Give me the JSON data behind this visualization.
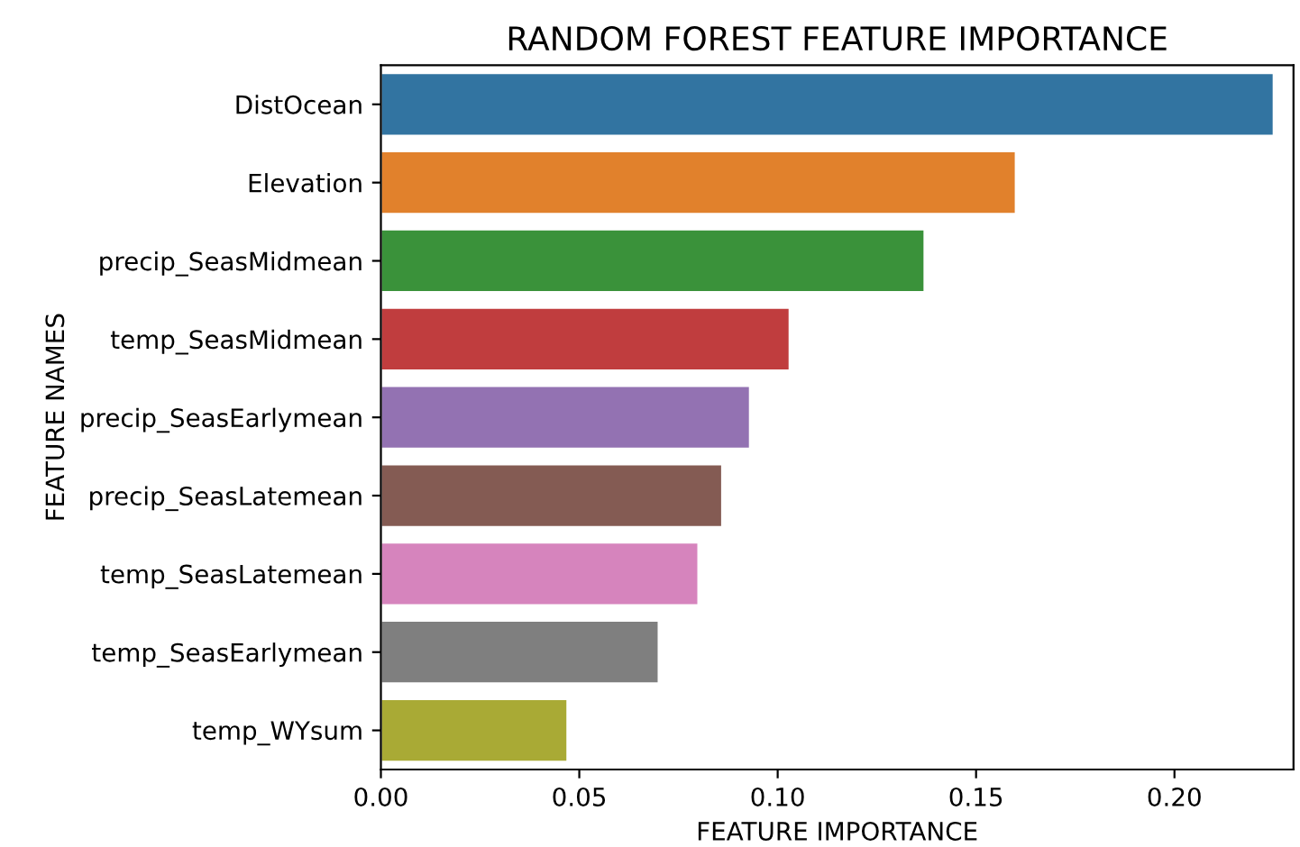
{
  "chart_data": {
    "type": "bar",
    "orientation": "horizontal",
    "title": "RANDOM FOREST FEATURE IMPORTANCE",
    "xlabel": "FEATURE IMPORTANCE",
    "ylabel": "FEATURE NAMES",
    "categories": [
      "DistOcean",
      "Elevation",
      "precip_SeasMidmean",
      "temp_SeasMidmean",
      "precip_SeasEarlymean",
      "precip_SeasLatemean",
      "temp_SeasLatemean",
      "temp_SeasEarlymean",
      "temp_WYsum"
    ],
    "values": [
      0.225,
      0.16,
      0.137,
      0.103,
      0.093,
      0.086,
      0.08,
      0.07,
      0.047
    ],
    "colors": [
      "#3274a1",
      "#e1812c",
      "#3a923a",
      "#c03d3e",
      "#9372b2",
      "#845b53",
      "#d684bd",
      "#7f7f7f",
      "#a9aa35"
    ],
    "xlim": [
      0,
      0.23
    ],
    "xticks": [
      {
        "value": 0,
        "label": "0.00"
      },
      0.05,
      {
        "value": 0.1,
        "label": "0.10"
      },
      0.15,
      {
        "value": 0.2,
        "label": "0.20"
      }
    ]
  }
}
